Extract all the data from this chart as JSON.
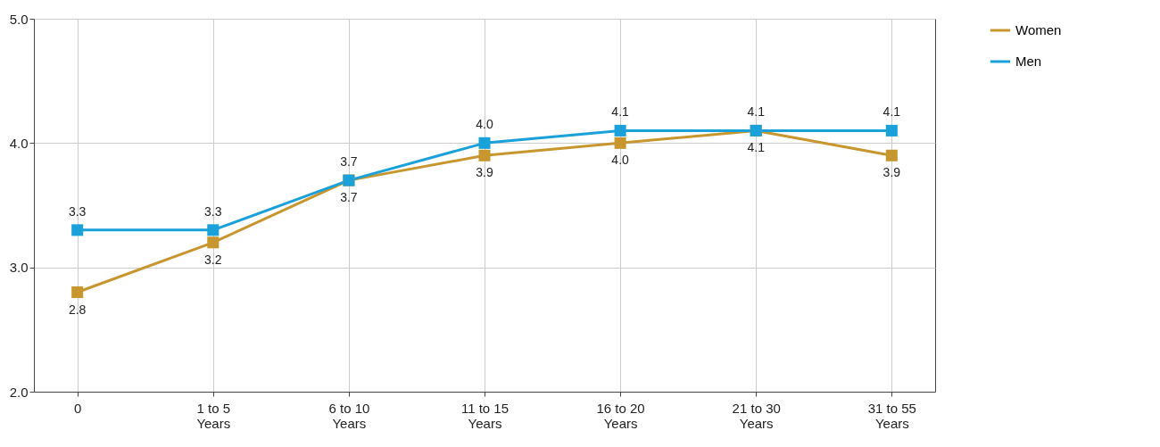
{
  "chart_data": {
    "type": "line",
    "categories": [
      "0",
      "1 to 5 Years",
      "6 to 10 Years",
      "11 to 15 Years",
      "16 to 20 Years",
      "21 to 30 Years",
      "31 to 55 Years"
    ],
    "series": [
      {
        "name": "Women",
        "color": "#c8962e",
        "values": [
          2.8,
          3.2,
          3.7,
          3.9,
          4.0,
          4.1,
          3.9
        ],
        "value_labels": [
          "2.8",
          "3.2",
          "3.7",
          "3.9",
          "4.0",
          "4.1",
          "3.9"
        ]
      },
      {
        "name": "Men",
        "color": "#1ba1d9",
        "values": [
          3.3,
          3.3,
          3.7,
          4.0,
          4.1,
          4.1,
          4.1
        ],
        "value_labels": [
          "3.3",
          "3.3",
          "3.7",
          "4.0",
          "4.1",
          "4.1",
          "4.1"
        ]
      }
    ],
    "ylim": [
      2,
      5
    ],
    "yticks": [
      {
        "value": 2,
        "label": "2.0"
      },
      {
        "value": 3,
        "label": "3.0"
      },
      {
        "value": 4,
        "label": "4.0"
      },
      {
        "value": 5,
        "label": "5.0"
      }
    ],
    "grid": true,
    "legend": "right",
    "marker": "square",
    "line_style": "solid"
  }
}
